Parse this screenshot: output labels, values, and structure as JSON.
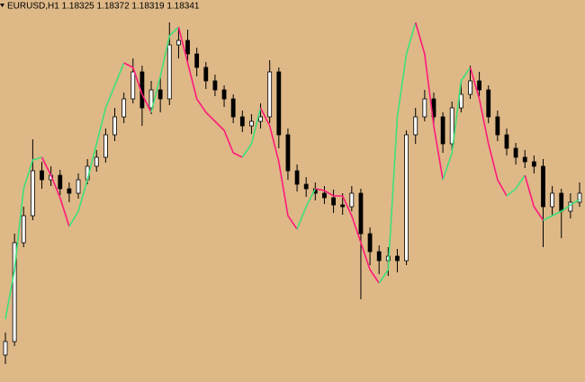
{
  "chart_data": {
    "type": "candlestick",
    "title": "EURUSD,H1  1.18325 1.18372 1.18319 1.18341",
    "background": "#deb887",
    "bull_color": "#ffffff",
    "bear_color": "#000000",
    "wick_color": "#000000",
    "ylim": [
      0,
      425
    ],
    "open": [
      30,
      45,
      155,
      185,
      235,
      225,
      230,
      215,
      210,
      225,
      240,
      250,
      275,
      295,
      315,
      345,
      305,
      325,
      315,
      375,
      380,
      365,
      350,
      335,
      325,
      315,
      295,
      285,
      290,
      295,
      345,
      275,
      235,
      220,
      215,
      210,
      205,
      197,
      195,
      210,
      165,
      145,
      135,
      140,
      135,
      275,
      295,
      315,
      295,
      265,
      305,
      320,
      335,
      325,
      295,
      275,
      260,
      250,
      245,
      240,
      195,
      210,
      190,
      200
    ],
    "high": [
      55,
      165,
      195,
      270,
      245,
      240,
      236,
      222,
      232,
      248,
      258,
      282,
      305,
      322,
      360,
      352,
      335,
      340,
      400,
      395,
      392,
      372,
      356,
      342,
      330,
      320,
      302,
      298,
      310,
      358,
      350,
      282,
      242,
      228,
      222,
      218,
      214,
      210,
      218,
      215,
      172,
      152,
      150,
      148,
      280,
      305,
      325,
      322,
      300,
      312,
      335,
      352,
      345,
      330,
      302,
      282,
      266,
      258,
      252,
      248,
      218,
      215,
      210,
      222
    ],
    "low": [
      20,
      40,
      150,
      180,
      215,
      218,
      208,
      200,
      204,
      220,
      234,
      244,
      268,
      288,
      310,
      285,
      298,
      300,
      308,
      360,
      355,
      340,
      326,
      318,
      306,
      288,
      278,
      276,
      282,
      288,
      260,
      225,
      212,
      206,
      202,
      198,
      188,
      186,
      190,
      92,
      130,
      120,
      118,
      122,
      130,
      265,
      290,
      285,
      255,
      258,
      300,
      315,
      318,
      288,
      268,
      252,
      242,
      238,
      232,
      150,
      185,
      160,
      182,
      195
    ],
    "close": [
      45,
      155,
      185,
      235,
      225,
      230,
      215,
      210,
      225,
      240,
      250,
      275,
      295,
      315,
      345,
      305,
      325,
      315,
      375,
      380,
      365,
      350,
      335,
      325,
      315,
      295,
      285,
      290,
      295,
      345,
      275,
      235,
      220,
      215,
      210,
      205,
      197,
      195,
      210,
      165,
      145,
      135,
      140,
      135,
      275,
      295,
      315,
      295,
      265,
      305,
      320,
      335,
      325,
      295,
      275,
      260,
      250,
      245,
      240,
      195,
      210,
      190,
      200,
      210
    ],
    "line": {
      "up_color": "#3fe07a",
      "down_color": "#ff1a7a",
      "values": [
        70,
        125,
        215,
        247,
        250,
        230,
        205,
        173,
        190,
        225,
        265,
        305,
        330,
        355,
        350,
        320,
        300,
        340,
        385,
        395,
        355,
        315,
        300,
        290,
        280,
        255,
        250,
        265,
        305,
        285,
        245,
        185,
        170,
        195,
        215,
        213,
        207,
        207,
        185,
        155,
        125,
        110,
        125,
        295,
        365,
        400,
        365,
        285,
        225,
        255,
        335,
        350,
        315,
        265,
        225,
        207,
        215,
        230,
        195,
        180,
        185,
        190,
        197,
        203
      ]
    }
  }
}
